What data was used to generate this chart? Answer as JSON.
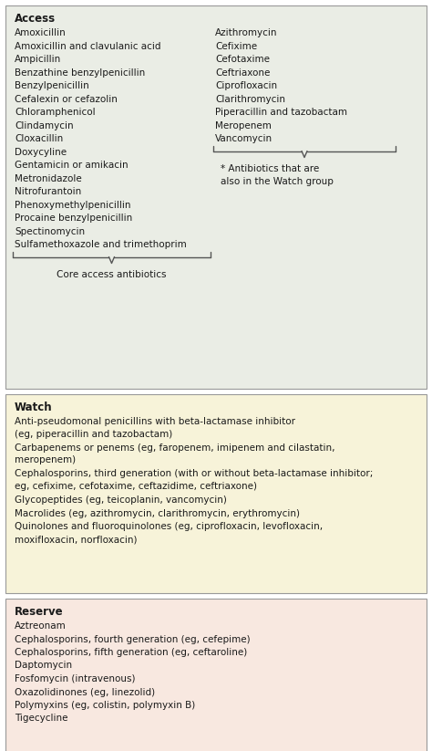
{
  "access_bg": "#eaede5",
  "watch_bg": "#f7f3d9",
  "reserve_bg": "#f8e8e0",
  "border_color": "#999999",
  "text_color": "#1a1a1a",
  "section1_title": "Access",
  "section1_left": [
    "Amoxicillin",
    "Amoxicillin and clavulanic acid",
    "Ampicillin",
    "Benzathine benzylpenicillin",
    "Benzylpenicillin",
    "Cefalexin or cefazolin",
    "Chloramphenicol",
    "Clindamycin",
    "Cloxacillin",
    "Doxycyline",
    "Gentamicin or amikacin",
    "Metronidazole",
    "Nitrofurantoin",
    "Phenoxymethylpenicillin",
    "Procaine benzylpenicillin",
    "Spectinomycin",
    "Sulfamethoxazole and trimethoprim"
  ],
  "section1_right": [
    "Azithromycin",
    "Cefixime",
    "Cefotaxime",
    "Ceftriaxone",
    "Ciprofloxacin",
    "Clarithromycin",
    "Piperacillin and tazobactam",
    "Meropenem",
    "Vancomycin"
  ],
  "core_access_label": "Core access antibiotics",
  "watch_note_line1": "* Antibiotics that are",
  "watch_note_line2": "also in the Watch group",
  "section2_title": "Watch",
  "section2_items": [
    [
      "Anti-pseudomonal penicillins with beta-lactamase inhibitor",
      "(eg, piperacillin and tazobactam)"
    ],
    [
      "Carbapenems or penems (eg, faropenem, imipenem and cilastatin,",
      "meropenem)"
    ],
    [
      "Cephalosporins, third generation (with or without beta-lactamase inhibitor;",
      "eg, cefixime, cefotaxime, ceftazidime, ceftriaxone)"
    ],
    [
      "Glycopeptides (eg, teicoplanin, vancomycin)"
    ],
    [
      "Macrolides (eg, azithromycin, clarithromycin, erythromycin)"
    ],
    [
      "Quinolones and fluoroquinolones (eg, ciprofloxacin, levofloxacin,",
      "moxifloxacin, norfloxacin)"
    ]
  ],
  "section3_title": "Reserve",
  "section3_items": [
    "Aztreonam",
    "Cephalosporins, fourth generation (eg, cefepime)",
    "Cephalosporins, fifth generation (eg, ceftaroline)",
    "Daptomycin",
    "Fosfomycin (intravenous)",
    "Oxazolidinones (eg, linezolid)",
    "Polymyxins (eg, colistin, polymyxin B)",
    "Tigecycline"
  ],
  "fig_w": 4.74,
  "fig_h": 8.23,
  "dpi": 100
}
